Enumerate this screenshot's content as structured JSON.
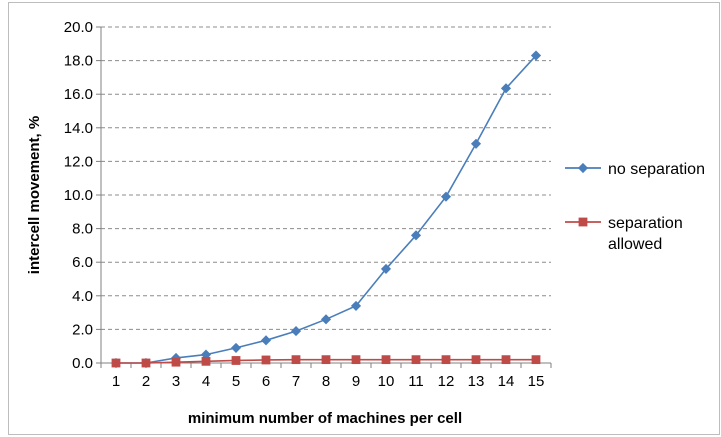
{
  "chart_data": {
    "type": "line",
    "title": "",
    "xlabel": "minimum number of machines per cell",
    "ylabel": "intercell movement, %",
    "categories": [
      "1",
      "2",
      "3",
      "4",
      "5",
      "6",
      "7",
      "8",
      "9",
      "10",
      "11",
      "12",
      "13",
      "14",
      "15"
    ],
    "ylim": [
      0,
      20
    ],
    "ytick_labels": [
      "0.0",
      "2.0",
      "4.0",
      "6.0",
      "8.0",
      "10.0",
      "12.0",
      "14.0",
      "16.0",
      "18.0",
      "20.0"
    ],
    "grid": "horizontal dashed",
    "legend_position": "right",
    "series": [
      {
        "name": "no separation",
        "marker": "diamond",
        "color": "#4a7ebb",
        "values": [
          0.0,
          0.0,
          0.3,
          0.5,
          0.9,
          1.35,
          1.9,
          2.6,
          3.4,
          5.6,
          7.6,
          9.9,
          13.05,
          16.35,
          18.3
        ]
      },
      {
        "name": "separation allowed",
        "name_lines": [
          "separation",
          "allowed"
        ],
        "marker": "square",
        "color": "#be4b48",
        "values": [
          0.0,
          0.0,
          0.05,
          0.1,
          0.15,
          0.18,
          0.2,
          0.2,
          0.2,
          0.2,
          0.2,
          0.2,
          0.2,
          0.2,
          0.2
        ]
      }
    ]
  }
}
